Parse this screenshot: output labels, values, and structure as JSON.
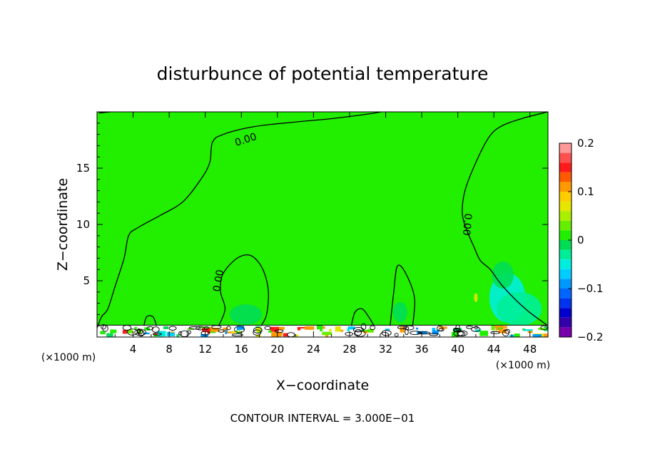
{
  "chart_data": {
    "type": "heatmap",
    "title": "disturbunce of potential temperature",
    "xlabel": "X−coordinate",
    "ylabel": "Z−coordinate",
    "x_unit_left": "(×1000 m)",
    "x_unit_right": "(×1000 m)",
    "xlim": [
      0,
      50
    ],
    "ylim": [
      0,
      20
    ],
    "x_ticks": [
      4,
      8,
      12,
      16,
      20,
      24,
      28,
      32,
      36,
      40,
      44,
      48
    ],
    "x_tick_labels": [
      "4",
      "8",
      "12",
      "16",
      "20",
      "24",
      "28",
      "32",
      "36",
      "40",
      "44",
      "48"
    ],
    "y_ticks": [
      5,
      10,
      15
    ],
    "y_tick_labels": [
      "5",
      "10",
      "15"
    ],
    "contour_interval_text": "CONTOUR INTERVAL = 3.000E−01",
    "contour_labels": [
      {
        "text": "0.00",
        "x": 16.5,
        "y": 17.5,
        "rotate": -18
      },
      {
        "text": "0.00",
        "x": 13.5,
        "y": 5.0,
        "rotate": -80
      },
      {
        "text": "0.00",
        "x": 41.0,
        "y": 10.0,
        "rotate": 95
      }
    ],
    "colorbar": {
      "min": -0.2,
      "max": 0.2,
      "tick_values": [
        0.2,
        0.1,
        0,
        -0.1,
        -0.2
      ],
      "tick_labels": [
        "0.2",
        "0.1",
        "0",
        "−0.1",
        "−0.2"
      ],
      "levels": [
        {
          "from": 0.18,
          "to": 0.2,
          "color": "#ff9999"
        },
        {
          "from": 0.16,
          "to": 0.18,
          "color": "#ff5050"
        },
        {
          "from": 0.14,
          "to": 0.16,
          "color": "#ff1a1a"
        },
        {
          "from": 0.12,
          "to": 0.14,
          "color": "#ff5a00"
        },
        {
          "from": 0.1,
          "to": 0.12,
          "color": "#ff9900"
        },
        {
          "from": 0.08,
          "to": 0.1,
          "color": "#ffcc00"
        },
        {
          "from": 0.06,
          "to": 0.08,
          "color": "#e6e600"
        },
        {
          "from": 0.04,
          "to": 0.06,
          "color": "#aaee00"
        },
        {
          "from": 0.02,
          "to": 0.04,
          "color": "#66ee00"
        },
        {
          "from": 0.0,
          "to": 0.02,
          "color": "#22ee00"
        },
        {
          "from": -0.02,
          "to": 0.0,
          "color": "#00dd55"
        },
        {
          "from": -0.04,
          "to": -0.02,
          "color": "#00ee99"
        },
        {
          "from": -0.06,
          "to": -0.04,
          "color": "#00eedd"
        },
        {
          "from": -0.08,
          "to": -0.06,
          "color": "#00ccff"
        },
        {
          "from": -0.1,
          "to": -0.08,
          "color": "#0099ff"
        },
        {
          "from": -0.12,
          "to": -0.1,
          "color": "#0066ff"
        },
        {
          "from": -0.14,
          "to": -0.12,
          "color": "#0033ee"
        },
        {
          "from": -0.16,
          "to": -0.14,
          "color": "#0000cc"
        },
        {
          "from": -0.18,
          "to": -0.16,
          "color": "#3300aa"
        },
        {
          "from": -0.2,
          "to": -0.18,
          "color": "#7700aa"
        }
      ]
    },
    "field_background_color": "#22ee00",
    "zero_contours": [
      {
        "name": "contour-upper",
        "points": [
          [
            0,
            0.8
          ],
          [
            0.5,
            1.8
          ],
          [
            1.2,
            2.5
          ],
          [
            2.0,
            4.5
          ],
          [
            3.0,
            7.0
          ],
          [
            3.5,
            9.0
          ],
          [
            4.5,
            9.7
          ],
          [
            7.0,
            10.8
          ],
          [
            9.5,
            12.0
          ],
          [
            11.5,
            14.0
          ],
          [
            12.5,
            15.5
          ],
          [
            12.8,
            17.3
          ],
          [
            14.0,
            18.0
          ],
          [
            17.5,
            18.7
          ],
          [
            22.0,
            19.1
          ],
          [
            26.0,
            19.4
          ],
          [
            30.0,
            19.8
          ],
          [
            31.5,
            20.0
          ]
        ]
      },
      {
        "name": "contour-left-top",
        "points": [
          [
            0.2,
            19.9
          ],
          [
            1.5,
            20.0
          ]
        ]
      },
      {
        "name": "contour-bump-16",
        "points": [
          [
            13.5,
            1.0
          ],
          [
            14.2,
            2.5
          ],
          [
            13.7,
            4.0
          ],
          [
            13.9,
            5.5
          ],
          [
            15.2,
            6.8
          ],
          [
            16.5,
            7.3
          ],
          [
            17.5,
            7.0
          ],
          [
            18.5,
            5.8
          ],
          [
            19.0,
            4.0
          ],
          [
            18.8,
            2.0
          ],
          [
            18.2,
            1.0
          ]
        ]
      },
      {
        "name": "contour-bump-29",
        "points": [
          [
            28.2,
            1.0
          ],
          [
            28.6,
            2.2
          ],
          [
            29.4,
            2.5
          ],
          [
            30.2,
            1.7
          ],
          [
            30.7,
            1.0
          ]
        ]
      },
      {
        "name": "contour-bump-33",
        "points": [
          [
            32.5,
            1.0
          ],
          [
            32.9,
            4.0
          ],
          [
            33.3,
            6.3
          ],
          [
            34.2,
            5.7
          ],
          [
            35.2,
            3.5
          ],
          [
            35.0,
            1.0
          ]
        ]
      },
      {
        "name": "contour-right",
        "points": [
          [
            50.0,
            20.0
          ],
          [
            47.5,
            19.5
          ],
          [
            45.0,
            18.8
          ],
          [
            43.5,
            17.8
          ],
          [
            42.0,
            15.5
          ],
          [
            40.8,
            13.0
          ],
          [
            40.5,
            11.0
          ],
          [
            41.0,
            9.5
          ],
          [
            41.8,
            8.0
          ],
          [
            42.5,
            6.8
          ],
          [
            43.6,
            6.0
          ],
          [
            45.0,
            4.5
          ],
          [
            47.5,
            2.5
          ],
          [
            50.0,
            1.0
          ]
        ]
      },
      {
        "name": "contour-bump-6",
        "points": [
          [
            5.2,
            1.0
          ],
          [
            5.5,
            1.8
          ],
          [
            6.2,
            1.8
          ],
          [
            6.6,
            1.0
          ]
        ]
      }
    ],
    "anomaly_patches": [
      {
        "name": "patch-cyan-right",
        "x": 45.5,
        "y": 3.5,
        "rx": 2.0,
        "ry": 2.2,
        "color": "#00eedd"
      },
      {
        "name": "patch-teal-right",
        "x": 46.8,
        "y": 2.5,
        "rx": 2.5,
        "ry": 1.5,
        "color": "#00ee99"
      },
      {
        "name": "patch-teal-upper",
        "x": 45.0,
        "y": 5.5,
        "rx": 1.2,
        "ry": 1.2,
        "color": "#00dd55"
      },
      {
        "name": "patch-mid-16",
        "x": 16.5,
        "y": 2.0,
        "rx": 1.8,
        "ry": 0.9,
        "color": "#00dd55"
      },
      {
        "name": "patch-mid-33",
        "x": 33.6,
        "y": 2.2,
        "rx": 0.8,
        "ry": 0.9,
        "color": "#00dd55"
      },
      {
        "name": "patch-yellow-42",
        "x": 42.0,
        "y": 3.5,
        "rx": 0.2,
        "ry": 0.4,
        "color": "#e6e600"
      }
    ]
  }
}
